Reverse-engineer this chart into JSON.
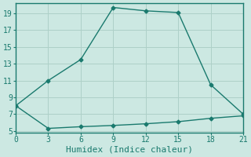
{
  "line1_x": [
    0,
    3,
    6,
    9,
    12,
    15,
    18,
    21
  ],
  "line1_y": [
    8,
    11,
    13.5,
    19.7,
    19.3,
    19.1,
    10.5,
    7
  ],
  "line2_x": [
    0,
    3,
    6,
    9,
    12,
    15,
    18,
    21
  ],
  "line2_y": [
    8,
    5.3,
    5.5,
    5.65,
    5.85,
    6.1,
    6.5,
    6.8
  ],
  "line_color": "#1a7a6e",
  "bg_color": "#cce8e2",
  "grid_color": "#aed0c8",
  "xlabel": "Humidex (Indice chaleur)",
  "xlabel_fontsize": 8,
  "xticks": [
    0,
    3,
    6,
    9,
    12,
    15,
    18,
    21
  ],
  "yticks": [
    5,
    7,
    9,
    11,
    13,
    15,
    17,
    19
  ],
  "xlim": [
    0,
    21
  ],
  "ylim": [
    4.8,
    20.2
  ],
  "markersize": 2.5,
  "linewidth": 1.0,
  "tick_fontsize": 7
}
